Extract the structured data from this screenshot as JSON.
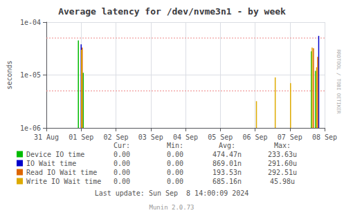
{
  "chart_data": {
    "type": "bar",
    "title": "Average latency for /dev/nvme3n1 - by week",
    "y_label": "seconds",
    "log": "y",
    "grid": true,
    "xlim": [
      0,
      8.0
    ],
    "xticks": [
      {
        "value": 0,
        "label": "31 Aug"
      },
      {
        "value": 1,
        "label": "01 Sep"
      },
      {
        "value": 2,
        "label": "02 Sep"
      },
      {
        "value": 3,
        "label": "03 Sep"
      },
      {
        "value": 4,
        "label": "04 Sep"
      },
      {
        "value": 5,
        "label": "05 Sep"
      },
      {
        "value": 6,
        "label": "06 Sep"
      },
      {
        "value": 7,
        "label": "07 Sep"
      },
      {
        "value": 8,
        "label": "08 Sep"
      }
    ],
    "ylim": [
      1e-06,
      0.0001
    ],
    "yticks": [
      {
        "value": 1e-06,
        "label": "1e-06"
      },
      {
        "value": 1e-05,
        "label": "1e-05"
      },
      {
        "value": 0.0001,
        "label": "1e-04"
      }
    ],
    "reference_lines": [
      5e-05,
      5e-06
    ],
    "series": [
      {
        "name": "Device IO time",
        "color": "#00bb00",
        "x": [
          0.92,
          1.06,
          7.62,
          7.74
        ],
        "values": [
          4.5e-05,
          1.1e-05,
          2.8e-05,
          1.2e-05
        ],
        "bottoms": [
          1e-06,
          1e-06,
          1e-06,
          1e-06
        ],
        "legend_values": [
          "0.00",
          "0.00",
          "474.47n",
          "233.63u"
        ]
      },
      {
        "name": "IO Wait time",
        "color": "#0000cc",
        "x": [
          1.0,
          7.83
        ],
        "values": [
          3.8e-05,
          5.5e-05
        ],
        "bottoms": [
          1e-06,
          1e-06
        ],
        "legend_values": [
          "0.00",
          "0.00",
          "869.01n",
          "291.60u"
        ]
      },
      {
        "name": "Read IO Wait time",
        "color": "#dd6600",
        "x": [
          1.03,
          7.68,
          7.8
        ],
        "values": [
          3.3e-05,
          3.2e-05,
          2.2e-05
        ],
        "bottoms": [
          1e-06,
          1e-06,
          1e-06
        ],
        "legend_values": [
          "0.00",
          "0.00",
          "193.53n",
          "292.51u"
        ]
      },
      {
        "name": "Write IO Wait time",
        "color": "#ddaa00",
        "x": [
          1.01,
          6.04,
          6.58,
          7.02,
          7.64,
          7.77
        ],
        "values": [
          3e-05,
          3.2e-06,
          9e-06,
          7e-06,
          3.3e-05,
          1.4e-05
        ],
        "bottoms": [
          1e-06,
          1e-06,
          1e-06,
          1e-06,
          1e-06,
          1e-06
        ],
        "legend_values": [
          "0.00",
          "0.00",
          "685.16n",
          "45.98u"
        ]
      }
    ],
    "legend_table": {
      "columns": [
        "Cur:",
        "Min:",
        "Avg:",
        "Max:"
      ]
    },
    "annotations": [
      "Last update: Sun Sep  8 14:00:09 2024",
      "Munin 2.0.73",
      "RRDTOOL / TOBI OETIKER"
    ]
  }
}
